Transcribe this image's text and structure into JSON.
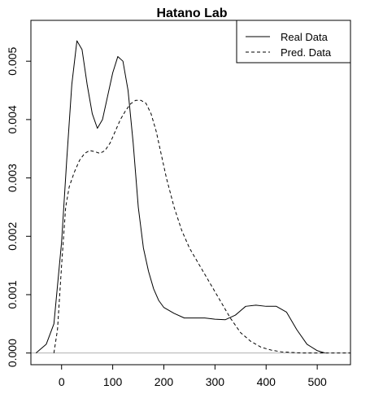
{
  "chart_data": {
    "type": "line",
    "title": "Hatano Lab",
    "xlabel": "",
    "ylabel": "",
    "xlim": [
      -60,
      565
    ],
    "ylim": [
      -0.0002,
      0.0057
    ],
    "x_ticks": [
      0,
      100,
      200,
      300,
      400,
      500
    ],
    "y_ticks": [
      0.0,
      0.001,
      0.002,
      0.003,
      0.004,
      0.005
    ],
    "y_tick_labels": [
      "0.000",
      "0.001",
      "0.002",
      "0.003",
      "0.004",
      "0.005"
    ],
    "baseline": 0,
    "legend_position": "top-right",
    "series": [
      {
        "name": "Real Data",
        "line_style": "solid",
        "x": [
          -50,
          -30,
          -15,
          0,
          10,
          20,
          30,
          40,
          50,
          60,
          70,
          80,
          90,
          100,
          110,
          120,
          130,
          140,
          150,
          160,
          170,
          180,
          190,
          200,
          220,
          240,
          260,
          280,
          300,
          320,
          340,
          360,
          380,
          400,
          420,
          440,
          460,
          480,
          500,
          515
        ],
        "y": [
          0.0,
          0.00015,
          0.0005,
          0.0019,
          0.0033,
          0.0046,
          0.00535,
          0.0052,
          0.0046,
          0.0041,
          0.00385,
          0.004,
          0.0044,
          0.0048,
          0.00508,
          0.005,
          0.0045,
          0.0036,
          0.0025,
          0.0018,
          0.0014,
          0.0011,
          0.0009,
          0.00078,
          0.00068,
          0.0006,
          0.0006,
          0.0006,
          0.00058,
          0.00057,
          0.00065,
          0.0008,
          0.00082,
          0.0008,
          0.0008,
          0.0007,
          0.0004,
          0.00015,
          4e-05,
          0.0
        ]
      },
      {
        "name": "Pred. Data",
        "line_style": "dashed",
        "x": [
          -15,
          -8,
          0,
          8,
          15,
          25,
          35,
          45,
          55,
          65,
          75,
          85,
          95,
          105,
          115,
          125,
          135,
          145,
          155,
          165,
          175,
          185,
          195,
          205,
          220,
          235,
          250,
          270,
          290,
          310,
          330,
          350,
          370,
          390,
          410,
          430,
          450,
          470,
          490,
          520,
          565
        ],
        "y": [
          0.0,
          0.0004,
          0.0015,
          0.0025,
          0.00285,
          0.0031,
          0.0033,
          0.00342,
          0.00347,
          0.00345,
          0.00342,
          0.00347,
          0.0036,
          0.0038,
          0.004,
          0.00415,
          0.00427,
          0.00433,
          0.00433,
          0.00428,
          0.0041,
          0.0038,
          0.0034,
          0.003,
          0.0025,
          0.0021,
          0.0018,
          0.0015,
          0.0012,
          0.0009,
          0.0006,
          0.00035,
          0.0002,
          0.0001,
          5e-05,
          2e-05,
          1e-05,
          0.0,
          0.0,
          0.0,
          0.0
        ]
      }
    ]
  }
}
